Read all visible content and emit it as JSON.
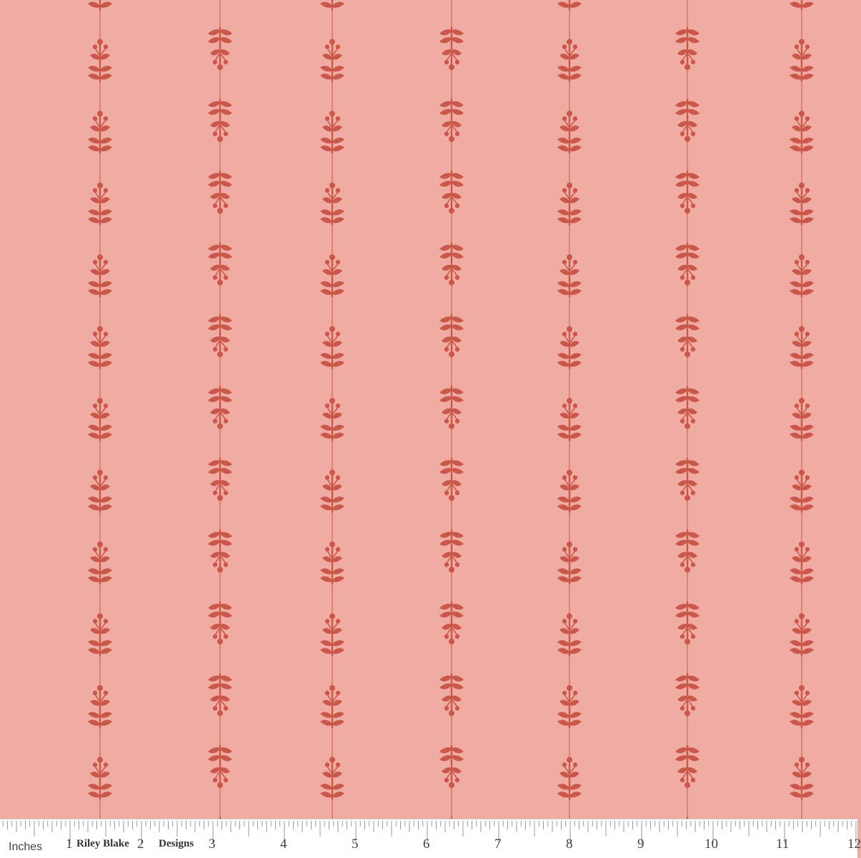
{
  "fabric": {
    "background_color": "#f0aca3",
    "motif_color": "#c9574a",
    "stem_color": "#d27468",
    "motif": "leaf-sprig-with-buds",
    "columns": 7
  },
  "ruler": {
    "unit_label": "Inches",
    "numbers": [
      "1",
      "2",
      "3",
      "4",
      "5",
      "6",
      "7",
      "8",
      "9",
      "10",
      "11",
      "12"
    ],
    "brand_part1": "Riley Blake",
    "brand_part2": "Designs"
  }
}
